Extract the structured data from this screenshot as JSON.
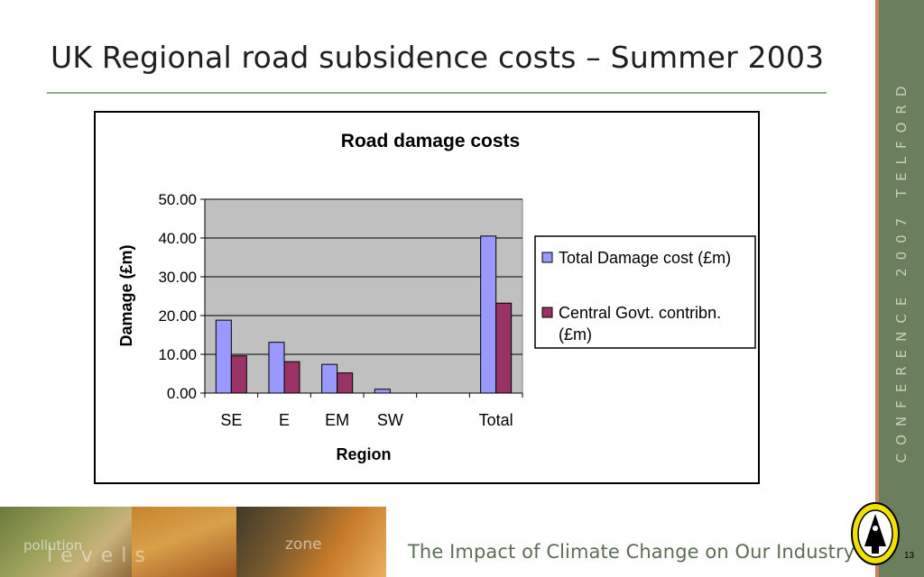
{
  "slide": {
    "title": "UK Regional road subsidence costs – Summer 2003",
    "side_text": "CONFERENCE 2007 TELFORD",
    "footer_text": "The Impact of Climate Change on Our Industry",
    "page_number": "13",
    "photo_words": [
      "pollution",
      "levels",
      "zone"
    ]
  },
  "colors": {
    "series_1": "#9999ff",
    "series_2": "#993366",
    "plot_bg": "#c0c0c0",
    "accent_rule": "#8db08d",
    "side_strip": "#6b7f5f"
  },
  "chart_data": {
    "type": "bar",
    "title": "Road damage costs",
    "xlabel": "Region",
    "ylabel": "Damage (£m)",
    "categories": [
      "SE",
      "E",
      "EM",
      "SW",
      "",
      "Total"
    ],
    "series": [
      {
        "name": "Total Damage cost (£m)",
        "values": [
          18.8,
          13.1,
          7.4,
          1.0,
          null,
          40.5
        ]
      },
      {
        "name": "Central Govt. contribn. (£m)",
        "values": [
          9.6,
          8.1,
          5.2,
          null,
          null,
          23.2
        ]
      }
    ],
    "ylim": [
      0,
      50
    ],
    "yticks": [
      "0.00",
      "10.00",
      "20.00",
      "30.00",
      "40.00",
      "50.00"
    ],
    "grid": true,
    "legend_position": "right"
  }
}
